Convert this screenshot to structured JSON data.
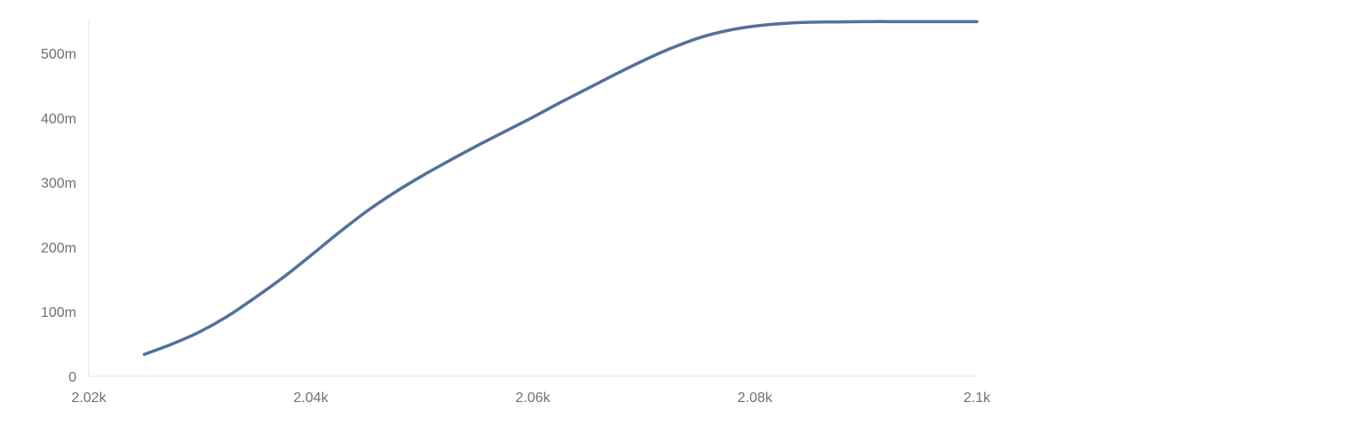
{
  "chart_data": {
    "type": "line",
    "title": "",
    "xlabel": "",
    "ylabel": "",
    "xlim": [
      2020,
      2100
    ],
    "ylim": [
      0,
      550
    ],
    "grid": false,
    "legend": "none",
    "x_ticks": [
      {
        "value": 2020,
        "label": "2.02k"
      },
      {
        "value": 2040,
        "label": "2.04k"
      },
      {
        "value": 2060,
        "label": "2.06k"
      },
      {
        "value": 2080,
        "label": "2.08k"
      },
      {
        "value": 2100,
        "label": "2.1k"
      }
    ],
    "y_ticks": [
      {
        "value": 0,
        "label": "0"
      },
      {
        "value": 100,
        "label": "100m"
      },
      {
        "value": 200,
        "label": "200m"
      },
      {
        "value": 300,
        "label": "300m"
      },
      {
        "value": 400,
        "label": "400m"
      },
      {
        "value": 500,
        "label": "500m"
      }
    ],
    "series": [
      {
        "color": "#52719b",
        "x": [
          2025,
          2027.5,
          2030,
          2032.5,
          2035,
          2037.5,
          2040,
          2042.5,
          2045,
          2047.5,
          2050,
          2052.5,
          2055,
          2057.5,
          2060,
          2062.5,
          2065,
          2067.5,
          2070,
          2072.5,
          2075,
          2077.5,
          2080,
          2082.5,
          2085,
          2087.5,
          2090,
          2092.5,
          2095,
          2097.5,
          2100
        ],
        "values": [
          34,
          50,
          69,
          93,
          122,
          153,
          187,
          222,
          255,
          284,
          310,
          334,
          357,
          379,
          401,
          424,
          446,
          468,
          489,
          508,
          524,
          535,
          542,
          546,
          548,
          548.5,
          549,
          549,
          549,
          549,
          549
        ]
      }
    ]
  }
}
